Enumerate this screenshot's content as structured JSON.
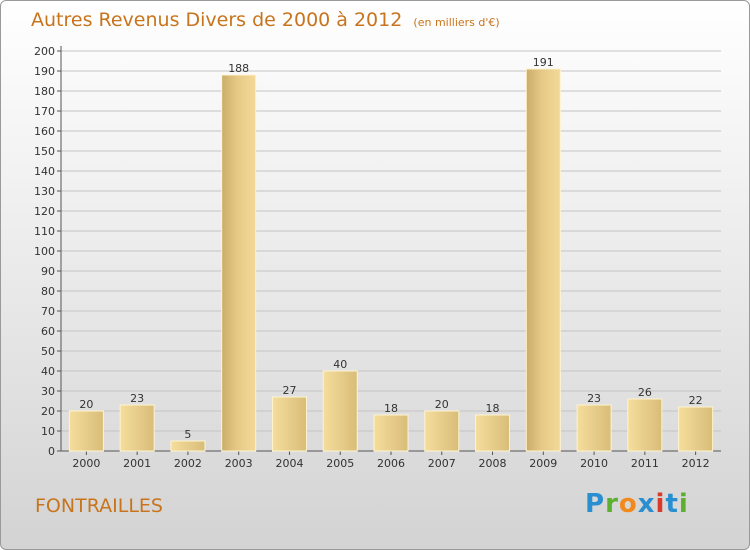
{
  "title": "Autres Revenus Divers de 2000 à 2012",
  "subtitle": "(en milliers d'€)",
  "place": "FONTRAILLES",
  "logo": {
    "text": "Proxiti",
    "letters": [
      "P",
      "r",
      "o",
      "x",
      "i",
      "t",
      "i"
    ],
    "colors": [
      "#2a8fd1",
      "#5bb030",
      "#f08a1c",
      "#2a8fd1",
      "#d83a2b",
      "#2a8fd1",
      "#5bb030"
    ]
  },
  "colors": {
    "title": "#c8741c",
    "bar_light": "#f5dd9c",
    "bar_dark": "#c9ad6a",
    "grid": "#c4c4c4"
  },
  "chart_data": {
    "type": "bar",
    "categories": [
      "2000",
      "2001",
      "2002",
      "2003",
      "2004",
      "2005",
      "2006",
      "2007",
      "2008",
      "2009",
      "2010",
      "2011",
      "2012"
    ],
    "values": [
      20,
      23,
      5,
      188,
      27,
      40,
      18,
      20,
      18,
      191,
      23,
      26,
      22
    ],
    "ylim": [
      0,
      200
    ],
    "ytick_step": 10,
    "grid": true
  }
}
